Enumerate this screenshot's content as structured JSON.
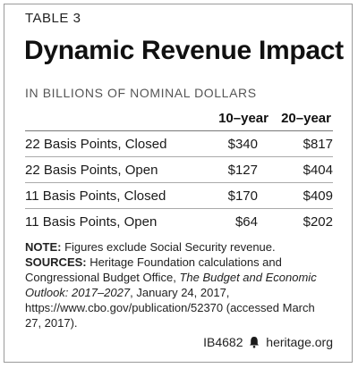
{
  "table_label": "TABLE 3",
  "title": "Dynamic Revenue Impact",
  "subtitle": "IN BILLIONS OF NOMINAL DOLLARS",
  "columns": [
    "10–year",
    "20–year"
  ],
  "rows": [
    {
      "name": "22 Basis Points, Closed",
      "v1": "$340",
      "v2": "$817"
    },
    {
      "name": "22 Basis Points, Open",
      "v1": "$127",
      "v2": "$404"
    },
    {
      "name": "11 Basis Points, Closed",
      "v1": "$170",
      "v2": "$409"
    },
    {
      "name": "11 Basis Points, Open",
      "v1": "$64",
      "v2": "$202"
    }
  ],
  "note": {
    "note_label": "NOTE:",
    "note_text": " Figures exclude Social Security revenue.",
    "sources_label": "SOURCES:",
    "sources_text_1": " Heritage Foundation calculations and Congressional Budget Office, ",
    "sources_italic": "The Budget and Economic Outlook: 2017–2027",
    "sources_text_2": ", January 24, 2017, https://www.cbo.gov/publication/52370 (accessed March 27, 2017)."
  },
  "footer": {
    "code": "IB4682",
    "site": "heritage.org",
    "icon": "bell-icon"
  }
}
